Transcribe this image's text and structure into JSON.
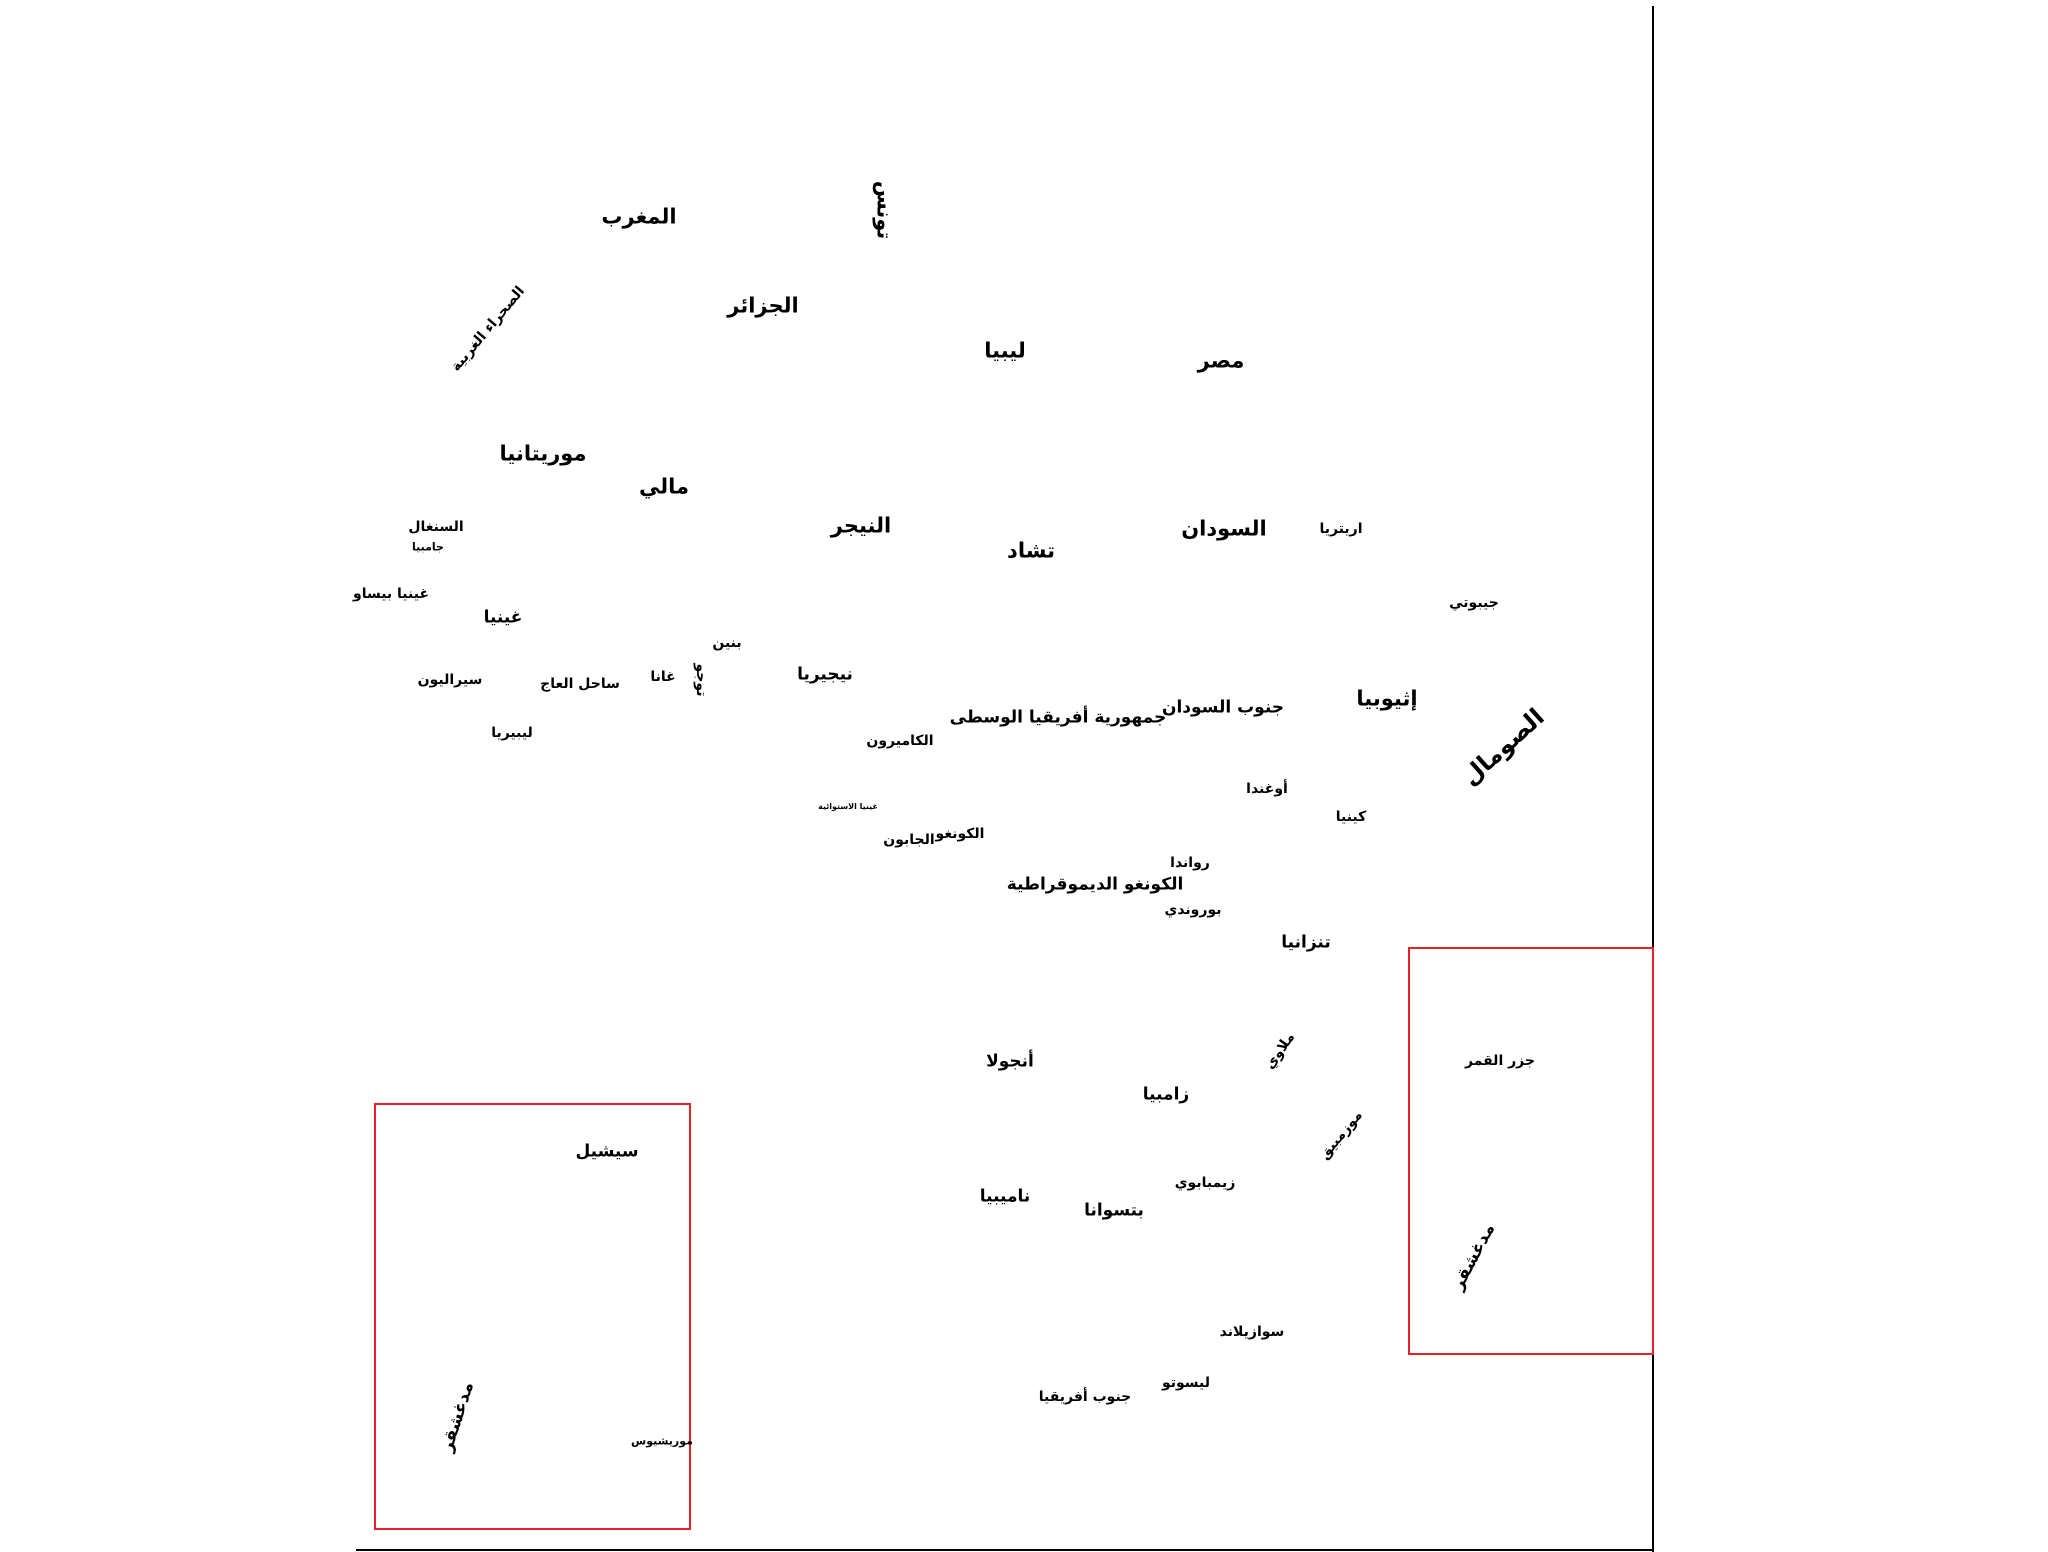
{
  "map": {
    "colors": {
      "inset_border": "#e8202a",
      "frame": "#000000",
      "background": "#ffffff"
    },
    "labels": {
      "morocco": "المغرب",
      "tunisia": "تونس",
      "algeria": "الجزائر",
      "western_sahara": "الصحراء الغربية",
      "libya": "ليبيا",
      "egypt": "مصر",
      "mauritania": "موريتانيا",
      "mali": "مالي",
      "niger": "النيجر",
      "chad": "تشاد",
      "sudan": "السودان",
      "eritrea": "اريتريا",
      "senegal": "السنغال",
      "gambia": "جامبيا",
      "guinea_bissau": "غينيا بيساو",
      "guinea": "غينيا",
      "djibouti": "جيبوتي",
      "benin": "بنين",
      "togo": "توجو",
      "ghana": "غانا",
      "nigeria": "نيجيريا",
      "sierra_leone": "سيراليون",
      "ivory_coast": "ساحل العاج",
      "central_african_republic": "جمهورية أفريقيا الوسطى",
      "south_sudan": "جنوب السودان",
      "ethiopia": "إثيوبيا",
      "somalia": "الصومال",
      "liberia": "ليبيريا",
      "cameroon": "الكاميرون",
      "uganda": "أوغندا",
      "equatorial_guinea": "غينيا الاستوائية",
      "kenya": "كينيا",
      "congo": "الكونغو",
      "gabon": "الجابون",
      "rwanda": "رواندا",
      "dr_congo": "الكونغو الديموقراطية",
      "burundi": "بوروندي",
      "tanzania": "تنزانيا",
      "comoros": "جزر القمر",
      "angola": "أنجولا",
      "malawi": "ملاوي",
      "zambia": "زامبيا",
      "mozambique": "موزمبيق",
      "seychelles": "سيشيل",
      "zimbabwe": "زيمبابوي",
      "namibia": "ناميبيا",
      "botswana": "بتسوانا",
      "madagascar_right": "مدغشقر",
      "swaziland": "سوازيلاند",
      "lesotho": "ليسوتو",
      "south_africa": "جنوب أفريقيا",
      "madagascar_left": "مدغشقر",
      "mauritius": "موريشيوس"
    }
  }
}
